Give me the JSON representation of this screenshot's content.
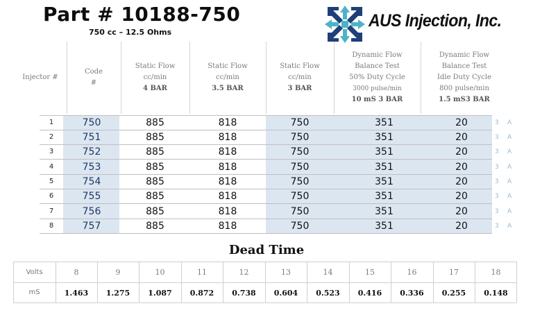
{
  "header": {
    "title": "Part # 10188-750",
    "subtitle": "750 cc – 12.5  Ohms",
    "logo_text": "AUS Injection, Inc."
  },
  "columns": {
    "injector": "Injector #",
    "code": [
      "Code",
      "#"
    ],
    "static_4": [
      "Static Flow",
      "cc/min",
      "4 BAR"
    ],
    "static_35": [
      "Static Flow",
      "cc/min",
      "3.5 BAR"
    ],
    "static_3": [
      "Static Flow",
      "cc/min",
      "3 BAR"
    ],
    "dynamic_50": [
      "Dynamic Flow",
      "Balance Test",
      "50% Duty Cycle",
      "3000 pulse/min",
      "10 mS  3 BAR"
    ],
    "dynamic_idle": [
      "Dynamic Flow",
      "Balance Test",
      "Idle Duty Cycle",
      "800 pulse/min",
      "1.5 mS3 BAR"
    ]
  },
  "rows": [
    {
      "idx": "1",
      "code": "750",
      "s4": "885",
      "s35": "818",
      "s3": "750",
      "dyn": "351",
      "idle": "20",
      "m1": "3",
      "m2": "A"
    },
    {
      "idx": "2",
      "code": "751",
      "s4": "885",
      "s35": "818",
      "s3": "750",
      "dyn": "351",
      "idle": "20",
      "m1": "3",
      "m2": "A"
    },
    {
      "idx": "3",
      "code": "752",
      "s4": "885",
      "s35": "818",
      "s3": "750",
      "dyn": "351",
      "idle": "20",
      "m1": "3",
      "m2": "A"
    },
    {
      "idx": "4",
      "code": "753",
      "s4": "885",
      "s35": "818",
      "s3": "750",
      "dyn": "351",
      "idle": "20",
      "m1": "3",
      "m2": "A"
    },
    {
      "idx": "5",
      "code": "754",
      "s4": "885",
      "s35": "818",
      "s3": "750",
      "dyn": "351",
      "idle": "20",
      "m1": "3",
      "m2": "A"
    },
    {
      "idx": "6",
      "code": "755",
      "s4": "885",
      "s35": "818",
      "s3": "750",
      "dyn": "351",
      "idle": "20",
      "m1": "3",
      "m2": "A"
    },
    {
      "idx": "7",
      "code": "756",
      "s4": "885",
      "s35": "818",
      "s3": "750",
      "dyn": "351",
      "idle": "20",
      "m1": "3",
      "m2": "A"
    },
    {
      "idx": "8",
      "code": "757",
      "s4": "885",
      "s35": "818",
      "s3": "750",
      "dyn": "351",
      "idle": "20",
      "m1": "3",
      "m2": "A"
    }
  ],
  "dead_time": {
    "title": "Dead Time",
    "volts_label": "Volts",
    "ms_label": "mS",
    "volts": [
      "8",
      "9",
      "10",
      "11",
      "12",
      "13",
      "14",
      "15",
      "16",
      "17",
      "18"
    ],
    "ms": [
      "1.463",
      "1.275",
      "1.087",
      "0.872",
      "0.738",
      "0.604",
      "0.523",
      "0.416",
      "0.336",
      "0.255",
      "0.148"
    ]
  },
  "colors": {
    "shade": "#dce6f1",
    "code_text": "#1f3864",
    "logo_dark": "#1f3f78",
    "logo_teal": "#4fb3c8"
  },
  "icons": {
    "logo": "crossed-arrows-cube-icon"
  }
}
